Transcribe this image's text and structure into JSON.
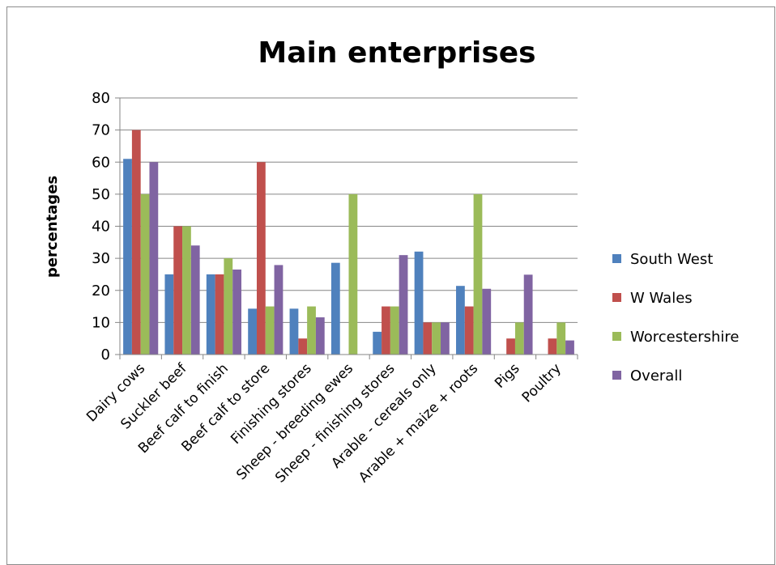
{
  "chart_data": {
    "type": "bar",
    "title": "Main enterprises",
    "xlabel": "",
    "ylabel": "percentages",
    "ylim": [
      0,
      80
    ],
    "yticks": [
      "0",
      "10",
      "20",
      "30",
      "40",
      "50",
      "60",
      "70",
      "80"
    ],
    "grid": true,
    "legend_position": "right",
    "categories": [
      "Dairy cows",
      "Suckler beef",
      "Beef calf to finish",
      "Beef calf to store",
      "Finishing stores",
      "Sheep - breeding ewes",
      "Sheep - finishing stores",
      "Arable - cereals only",
      "Arable + maize + roots",
      "Pigs",
      "Poultry"
    ],
    "series": [
      {
        "name": "South West",
        "color": "#4f81bd",
        "values": [
          61,
          25,
          25,
          14.3,
          14.3,
          28.6,
          7.1,
          32.1,
          21.4,
          0,
          0
        ]
      },
      {
        "name": "W Wales",
        "color": "#c0504d",
        "values": [
          70,
          40,
          25,
          60,
          5,
          0,
          15,
          10,
          15,
          5,
          5
        ]
      },
      {
        "name": "Worcestershire",
        "color": "#9bbb59",
        "values": [
          50,
          40,
          30,
          15,
          15,
          50,
          15,
          10,
          50,
          10,
          10
        ]
      },
      {
        "name": "Overall",
        "color": "#8064a2",
        "values": [
          60,
          34,
          26.5,
          27.9,
          11.6,
          0,
          31,
          10,
          20.5,
          24.9,
          4.4
        ]
      }
    ]
  }
}
